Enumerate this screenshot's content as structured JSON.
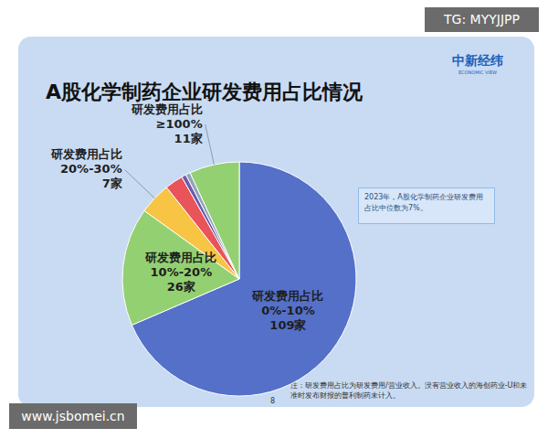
{
  "chart_data": {
    "type": "pie",
    "title": "A股化学制药企业研发费用占比情况",
    "categories": [
      "研发费用占比 0%-10%",
      "研发费用占比 10%-20%",
      "研发费用占比 20%-30%",
      null,
      null,
      null,
      "研发费用占比 ≥100%"
    ],
    "values": [
      109,
      26,
      7,
      4,
      1,
      1,
      11
    ],
    "value_labels": [
      "109家",
      "26家",
      "7家",
      null,
      null,
      null,
      "11家"
    ],
    "colors": [
      "#5470c9",
      "#93d072",
      "#f7c443",
      "#e9535a",
      "#6f5aa8",
      "#8fa6bd",
      "#93d072"
    ],
    "data_labels": true,
    "annotation": "2023年，A股化学制药企业研发费用占比中位数为7%。",
    "note": "注：研发费用占比为研发费用/营业收入。没有营业收入的海创药业-U和未准时发布财报的普利制药未计入。",
    "logo": "中新经纬",
    "logo_subtitle": "ECONOMIC VIEW",
    "page": "8",
    "watermarks": [
      "TG: MYYJJPP",
      "www.jsbomei.cn"
    ]
  }
}
